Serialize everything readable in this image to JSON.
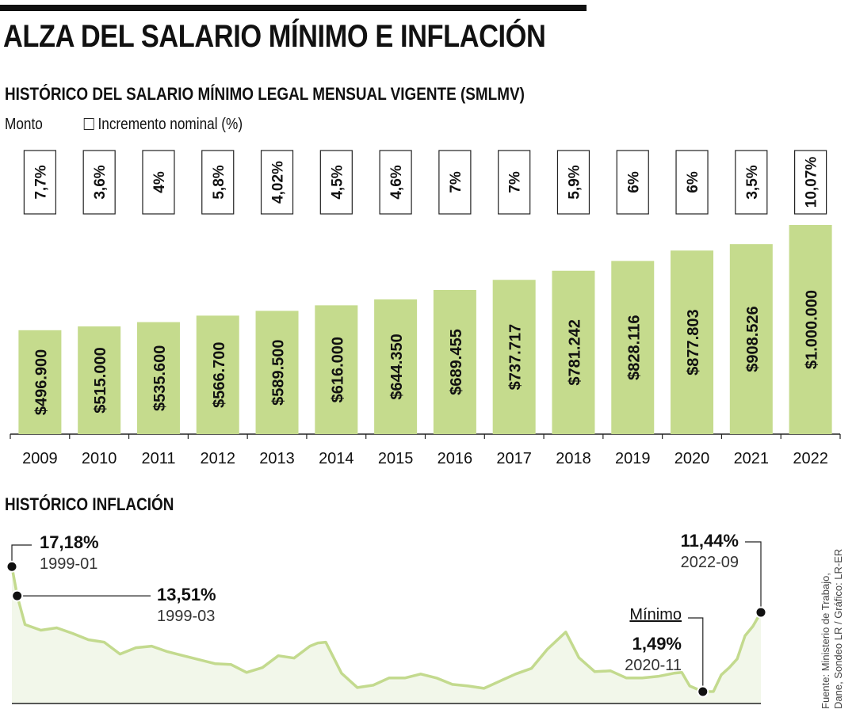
{
  "title": "ALZA DEL SALARIO MÍNIMO E INFLACIÓN",
  "subtitle": "HISTÓRICO DEL SALARIO MÍNIMO LEGAL MENSUAL VIGENTE (SMLMV)",
  "legend": {
    "amount_label": "Monto",
    "increment_label": "Incremento nominal (%)"
  },
  "inflation_section_title": "HISTÓRICO INFLACIÓN",
  "source": {
    "line1": "Fuente: Ministerio de Trabajo,",
    "line2": "Dane, Sondeo LR / Gráfico: LR-ER"
  },
  "colors": {
    "bar": "#c5db8d",
    "line": "#c3da8e",
    "area": "#f2f7ea",
    "text": "#111111"
  },
  "chart_data": [
    {
      "type": "bar",
      "title": "HISTÓRICO DEL SALARIO MÍNIMO LEGAL MENSUAL VIGENTE (SMLMV)",
      "categories": [
        "2009",
        "2010",
        "2011",
        "2012",
        "2013",
        "2014",
        "2015",
        "2016",
        "2017",
        "2018",
        "2019",
        "2020",
        "2021",
        "2022"
      ],
      "values": [
        496900,
        515000,
        535600,
        566700,
        589500,
        616000,
        644350,
        689455,
        737717,
        781242,
        828116,
        877803,
        908526,
        1000000
      ],
      "value_labels": [
        "$496.900",
        "$515.000",
        "$535.600",
        "$566.700",
        "$589.500",
        "$616.000",
        "$644.350",
        "$689.455",
        "$737.717",
        "$781.242",
        "$828.116",
        "$877.803",
        "$908.526",
        "$1.000.000"
      ],
      "increments": [
        "7,7%",
        "3,6%",
        "4%",
        "5,8%",
        "4,02%",
        "4,5%",
        "4,6%",
        "7%",
        "7%",
        "5,9%",
        "6%",
        "6%",
        "3,5%",
        "10,07%"
      ],
      "legend": [
        "Monto",
        "Incremento nominal (%)"
      ],
      "grid": false
    },
    {
      "type": "line",
      "title": "HISTÓRICO INFLACIÓN",
      "xlim": [
        "1999-01",
        "2022-09"
      ],
      "ylim": [
        0,
        17.5
      ],
      "grid": false,
      "points": [
        {
          "x": "1999-01",
          "y": 17.18
        },
        {
          "x": "1999-03",
          "y": 13.51
        },
        {
          "x": "1999-06",
          "y": 9.9
        },
        {
          "x": "1999-12",
          "y": 9.2
        },
        {
          "x": "2000-06",
          "y": 9.5
        },
        {
          "x": "2000-12",
          "y": 8.8
        },
        {
          "x": "2001-06",
          "y": 8.0
        },
        {
          "x": "2001-12",
          "y": 7.7
        },
        {
          "x": "2002-06",
          "y": 6.2
        },
        {
          "x": "2002-12",
          "y": 7.0
        },
        {
          "x": "2003-06",
          "y": 7.2
        },
        {
          "x": "2003-12",
          "y": 6.5
        },
        {
          "x": "2004-06",
          "y": 6.0
        },
        {
          "x": "2004-12",
          "y": 5.5
        },
        {
          "x": "2005-06",
          "y": 5.0
        },
        {
          "x": "2005-12",
          "y": 4.9
        },
        {
          "x": "2006-06",
          "y": 3.9
        },
        {
          "x": "2006-12",
          "y": 4.5
        },
        {
          "x": "2007-06",
          "y": 6.0
        },
        {
          "x": "2007-12",
          "y": 5.7
        },
        {
          "x": "2008-06",
          "y": 7.2
        },
        {
          "x": "2008-09",
          "y": 7.6
        },
        {
          "x": "2008-12",
          "y": 7.7
        },
        {
          "x": "2009-06",
          "y": 3.8
        },
        {
          "x": "2009-12",
          "y": 2.0
        },
        {
          "x": "2010-06",
          "y": 2.3
        },
        {
          "x": "2010-12",
          "y": 3.2
        },
        {
          "x": "2011-06",
          "y": 3.2
        },
        {
          "x": "2011-12",
          "y": 3.7
        },
        {
          "x": "2012-06",
          "y": 3.2
        },
        {
          "x": "2012-12",
          "y": 2.4
        },
        {
          "x": "2013-06",
          "y": 2.2
        },
        {
          "x": "2013-12",
          "y": 1.9
        },
        {
          "x": "2014-06",
          "y": 2.8
        },
        {
          "x": "2014-12",
          "y": 3.7
        },
        {
          "x": "2015-06",
          "y": 4.4
        },
        {
          "x": "2015-12",
          "y": 6.8
        },
        {
          "x": "2016-07",
          "y": 8.97
        },
        {
          "x": "2016-12",
          "y": 5.75
        },
        {
          "x": "2017-06",
          "y": 4.0
        },
        {
          "x": "2017-12",
          "y": 4.1
        },
        {
          "x": "2018-06",
          "y": 3.2
        },
        {
          "x": "2018-12",
          "y": 3.2
        },
        {
          "x": "2019-06",
          "y": 3.4
        },
        {
          "x": "2019-12",
          "y": 3.8
        },
        {
          "x": "2020-03",
          "y": 3.9
        },
        {
          "x": "2020-06",
          "y": 2.2
        },
        {
          "x": "2020-11",
          "y": 1.49
        },
        {
          "x": "2021-03",
          "y": 1.5
        },
        {
          "x": "2021-06",
          "y": 3.6
        },
        {
          "x": "2021-09",
          "y": 4.5
        },
        {
          "x": "2021-12",
          "y": 5.6
        },
        {
          "x": "2022-03",
          "y": 8.5
        },
        {
          "x": "2022-06",
          "y": 9.7
        },
        {
          "x": "2022-09",
          "y": 11.44
        }
      ],
      "annotations": [
        {
          "label": "17,18%",
          "date": "1999-01"
        },
        {
          "label": "13,51%",
          "date": "1999-03"
        },
        {
          "label": "1,49%",
          "date": "2020-11",
          "note": "Mínimo"
        },
        {
          "label": "11,44%",
          "date": "2022-09"
        }
      ]
    }
  ]
}
